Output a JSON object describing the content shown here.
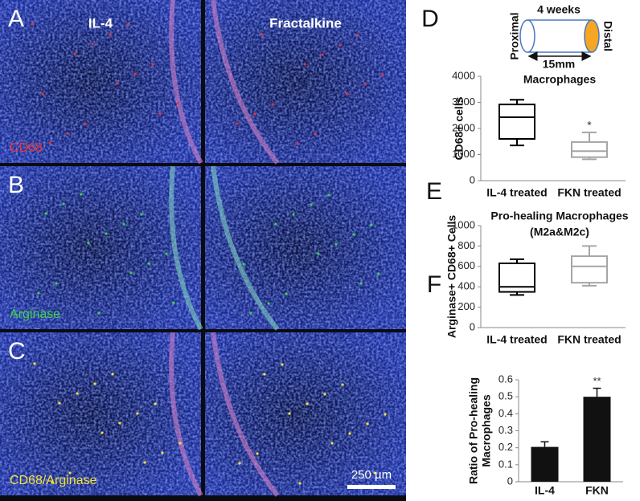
{
  "image_panels": {
    "columns": [
      "IL-4",
      "Fractalkine"
    ],
    "rows": [
      {
        "letter": "A",
        "stain": "CD68",
        "color": "#e8353a"
      },
      {
        "letter": "B",
        "stain": "Arginase",
        "color": "#3fd24a"
      },
      {
        "letter": "C",
        "stain": "CD68/Arginase",
        "color": "#f2e23a"
      }
    ],
    "scale_bar": "250 µm"
  },
  "diagram": {
    "letter": "D",
    "duration": "4 weeks",
    "proximal": "Proximal",
    "distal": "Distal",
    "length": "15mm"
  },
  "chart_data": [
    {
      "type": "box",
      "title": "Macrophages",
      "y_label": "CD68+ cells",
      "categories": [
        "IL-4 treated",
        "FKN treated"
      ],
      "colors": [
        "#000000",
        "#a6a6a6"
      ],
      "min": [
        1350,
        820
      ],
      "q1": [
        1600,
        900
      ],
      "median": [
        2430,
        1130
      ],
      "q3": [
        2920,
        1480
      ],
      "max": [
        3100,
        1850
      ],
      "significance_labels": [
        null,
        "*"
      ],
      "ylim": [
        0,
        4000
      ],
      "yticks": [
        0,
        1000,
        2000,
        3000,
        4000
      ]
    },
    {
      "type": "box",
      "panel": "E",
      "title": [
        "Pro-healing Macrophages",
        "(M2a&M2c)"
      ],
      "y_label": "Arginase+ CD68+ Cells",
      "categories": [
        "IL-4 treated",
        "FKN treated"
      ],
      "colors": [
        "#000000",
        "#a6a6a6"
      ],
      "min": [
        320,
        410
      ],
      "q1": [
        350,
        440
      ],
      "median": [
        400,
        600
      ],
      "q3": [
        630,
        700
      ],
      "max": [
        670,
        800
      ],
      "ylim": [
        0,
        1000
      ],
      "yticks": [
        0,
        200,
        400,
        600,
        800,
        1000
      ]
    },
    {
      "type": "bar",
      "panel": "F",
      "y_label": [
        "Ratio of Pro-healing",
        "Macrophages"
      ],
      "categories": [
        "IL-4",
        "FKN"
      ],
      "values": [
        0.205,
        0.5
      ],
      "errors": [
        0.03,
        0.05
      ],
      "color": "#111111",
      "significance_labels": [
        null,
        "**"
      ],
      "ylim": [
        0,
        0.6
      ],
      "yticks": [
        0,
        0.1,
        0.2,
        0.3,
        0.4,
        0.5,
        0.6
      ]
    }
  ]
}
